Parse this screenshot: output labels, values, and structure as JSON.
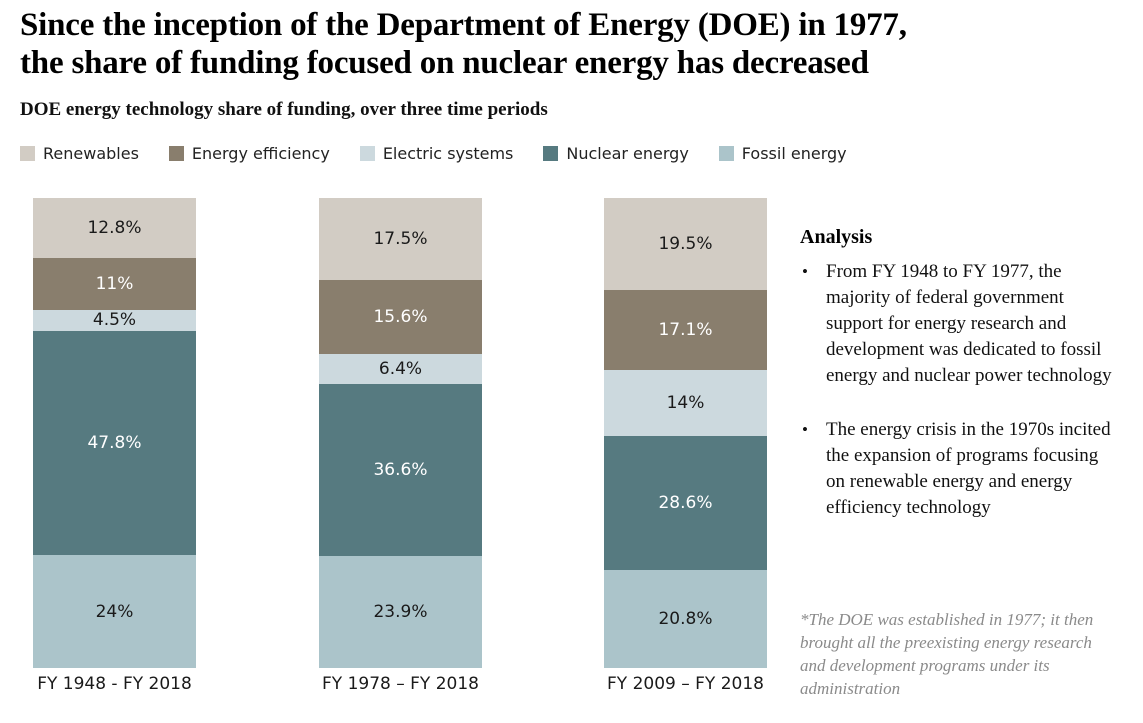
{
  "header": {
    "title_line1": "Since the inception of the Department of Energy (DOE) in 1977,",
    "title_line2": "the share of funding focused on nuclear energy has decreased",
    "subtitle": "DOE energy technology share of funding, over three time periods"
  },
  "chart_data": {
    "type": "bar",
    "stacked": true,
    "unit": "percent",
    "title": "DOE energy technology share of funding, over three time periods",
    "categories": [
      "FY 1948 - FY 2018",
      "FY 1978 – FY 2018",
      "FY 2009 – FY 2018"
    ],
    "series": [
      {
        "name": "Renewables",
        "color": "#d2ccc4",
        "label_style": "dark",
        "values": [
          12.8,
          17.5,
          19.5
        ]
      },
      {
        "name": "Energy efficiency",
        "color": "#897e6d",
        "label_style": "light",
        "values": [
          11.0,
          15.6,
          17.1
        ]
      },
      {
        "name": "Electric systems",
        "color": "#ccd9de",
        "label_style": "dark",
        "values": [
          4.5,
          6.4,
          14.0
        ]
      },
      {
        "name": "Nuclear energy",
        "color": "#567a80",
        "label_style": "light",
        "values": [
          47.8,
          36.6,
          28.6
        ]
      },
      {
        "name": "Fossil energy",
        "color": "#abc4ca",
        "label_style": "dark",
        "values": [
          24.0,
          23.9,
          20.8
        ]
      }
    ],
    "data_labels": [
      [
        "12.8%",
        "11%",
        "4.5%",
        "47.8%",
        "24%"
      ],
      [
        "17.5%",
        "15.6%",
        "6.4%",
        "36.6%",
        "23.9%"
      ],
      [
        "19.5%",
        "17.1%",
        "14%",
        "28.6%",
        "20.8%"
      ]
    ],
    "ylim": [
      0,
      100
    ],
    "legend_position": "top",
    "grid": false,
    "stack_order_top_to_bottom": [
      "Renewables",
      "Energy efficiency",
      "Electric systems",
      "Nuclear energy",
      "Fossil energy"
    ]
  },
  "analysis": {
    "heading": "Analysis",
    "bullets": [
      "From FY 1948 to FY 1977, the majority of federal government support for energy research and development was dedicated to fossil energy and nuclear power technology",
      "The energy crisis in the 1970s incited the expansion of programs focusing on renewable energy and energy efficiency technology"
    ]
  },
  "footnote": "*The DOE was established in 1977; it then brought all the preexisting energy research and development programs under its administration",
  "colors": {
    "background": "#ffffff",
    "title_text": "#000000",
    "body_text": "#111111",
    "footnote_text": "#8a8a8a",
    "value_label_dark": "#1a1a1a",
    "value_label_light": "#ffffff"
  }
}
